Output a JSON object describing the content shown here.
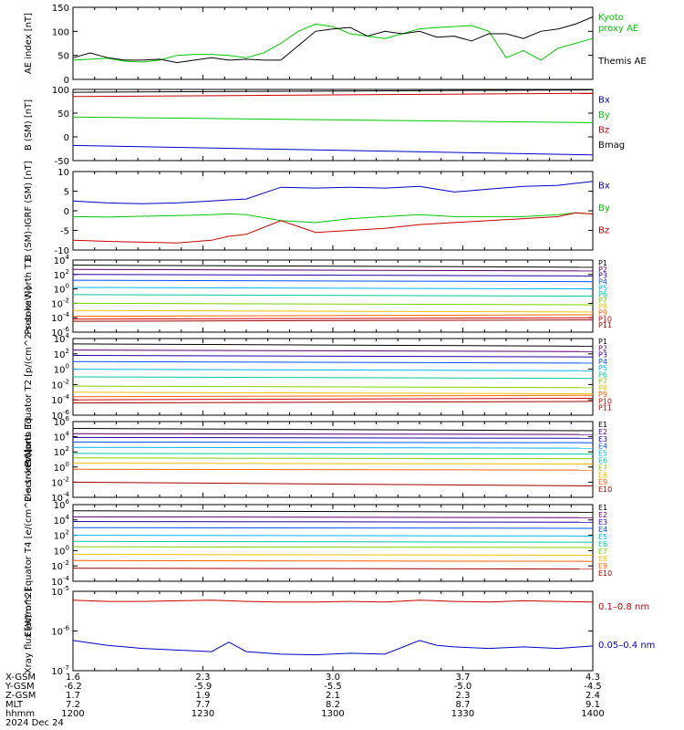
{
  "time_axis": {
    "date": "2024 Dec 24",
    "row_labels": [
      "X-GSM",
      "Y-GSM",
      "Z-GSM",
      "MLT",
      "hhmm"
    ],
    "columns": [
      {
        "values": [
          "1.6",
          "-6.2",
          "1.7",
          "7.2",
          "1200"
        ]
      },
      {
        "values": [
          "2.3",
          "-5.9",
          "1.9",
          "7.7",
          "1230"
        ]
      },
      {
        "values": [
          "3.0",
          "-5.5",
          "2.1",
          "8.2",
          "1300"
        ]
      },
      {
        "values": [
          "3.7",
          "-5.0",
          "2.3",
          "8.7",
          "1330"
        ]
      },
      {
        "values": [
          "4.3",
          "-4.5",
          "2.4",
          "9.1",
          "1400"
        ]
      }
    ]
  },
  "colors": {
    "black": "#000000",
    "blue": "#0000c8",
    "green": "#00c800",
    "red": "#c80000",
    "xray_red": "#c80000",
    "xray_blue": "#0000c8"
  },
  "chart_data": [
    {
      "type": "line",
      "id": "ae",
      "ylabel": "AE index [nT]",
      "ylim": [
        0,
        150
      ],
      "yticks": [
        "0",
        "50",
        "100",
        "150"
      ],
      "x": [
        1200,
        1204,
        1208,
        1212,
        1216,
        1220,
        1224,
        1228,
        1232,
        1236,
        1240,
        1244,
        1248,
        1252,
        1256,
        1300,
        1304,
        1308,
        1312,
        1316,
        1320,
        1324,
        1328,
        1332,
        1336,
        1340,
        1344,
        1348,
        1352,
        1356,
        1400
      ],
      "series": [
        {
          "name": "Kyoto proxy AE",
          "color": "green",
          "values": [
            40,
            42,
            44,
            38,
            36,
            40,
            50,
            52,
            52,
            50,
            45,
            55,
            75,
            100,
            115,
            110,
            95,
            90,
            85,
            95,
            105,
            108,
            110,
            112,
            100,
            45,
            60,
            40,
            65,
            75,
            85
          ]
        },
        {
          "name": "Themis AE",
          "color": "black",
          "values": [
            45,
            55,
            45,
            40,
            40,
            42,
            35,
            40,
            45,
            40,
            42,
            40,
            40,
            70,
            100,
            105,
            108,
            90,
            100,
            95,
            100,
            88,
            90,
            80,
            95,
            95,
            85,
            100,
            105,
            115,
            130
          ]
        }
      ]
    },
    {
      "type": "line",
      "id": "bsm",
      "ylabel": "B (SM) [nT]",
      "ylim": [
        -50,
        100
      ],
      "yticks": [
        "-50",
        "0",
        "50",
        "100"
      ],
      "x": [
        1200,
        1400
      ],
      "series": [
        {
          "name": "Bx",
          "color": "blue",
          "values": [
            -18,
            -38
          ]
        },
        {
          "name": "By",
          "color": "green",
          "values": [
            42,
            30
          ]
        },
        {
          "name": "Bz",
          "color": "red",
          "values": [
            85,
            92
          ]
        },
        {
          "name": "Bmag",
          "color": "black",
          "values": [
            94,
            99
          ]
        }
      ]
    },
    {
      "type": "line",
      "id": "bigrf",
      "ylabel": "B (SM)-IGRF (SM) [nT]",
      "ylim": [
        -10,
        10
      ],
      "yticks": [
        "-10",
        "-5",
        "0",
        "5",
        "10"
      ],
      "x": [
        1200,
        1208,
        1216,
        1224,
        1232,
        1236,
        1240,
        1248,
        1256,
        1304,
        1312,
        1320,
        1328,
        1336,
        1344,
        1352,
        1356,
        1400
      ],
      "series": [
        {
          "name": "Bx",
          "color": "blue",
          "values": [
            2.5,
            2.0,
            1.8,
            2.0,
            2.5,
            2.8,
            3.0,
            6.0,
            5.8,
            6.0,
            5.8,
            6.2,
            4.8,
            5.5,
            6.2,
            6.5,
            7.0,
            7.5
          ]
        },
        {
          "name": "By",
          "color": "green",
          "values": [
            -1.5,
            -1.6,
            -1.4,
            -1.2,
            -1.0,
            -0.8,
            -1.0,
            -2.5,
            -3.0,
            -2.0,
            -1.5,
            -1.0,
            -1.5,
            -1.5,
            -1.5,
            -1.0,
            -0.5,
            -0.8
          ]
        },
        {
          "name": "Bz",
          "color": "red",
          "values": [
            -7.5,
            -7.8,
            -8.0,
            -8.2,
            -7.5,
            -6.5,
            -6.0,
            -2.5,
            -5.5,
            -5.0,
            -4.5,
            -3.5,
            -3.0,
            -2.5,
            -2.0,
            -1.5,
            -0.5,
            -0.8
          ]
        }
      ]
    },
    {
      "type": "line",
      "id": "p_n",
      "ylabel": "Protons North T1",
      "scale": "log",
      "ylim": [
        -6,
        4
      ],
      "yticks": [
        "10^-6",
        "10^-4",
        "10^-2",
        "10^0",
        "10^2",
        "10^4"
      ],
      "x": [
        1200,
        1400
      ],
      "series": [
        {
          "name": "P1",
          "color": "#000000",
          "values": [
            3.3,
            3.0
          ]
        },
        {
          "name": "P2",
          "color": "#5a0070",
          "values": [
            2.7,
            2.5
          ]
        },
        {
          "name": "P3",
          "color": "#2200aa",
          "values": [
            2.0,
            1.8
          ]
        },
        {
          "name": "P4",
          "color": "#0050ff",
          "values": [
            1.2,
            1.0
          ]
        },
        {
          "name": "P5",
          "color": "#00b4ff",
          "values": [
            0.2,
            0.0
          ]
        },
        {
          "name": "P6",
          "color": "#00c8a0",
          "values": [
            -0.8,
            -1.0
          ]
        },
        {
          "name": "P7",
          "color": "#80d000",
          "values": [
            -2.0,
            -2.2
          ]
        },
        {
          "name": "P8",
          "color": "#f0c000",
          "values": [
            -3.0,
            -3.2
          ]
        },
        {
          "name": "P9",
          "color": "#ff6000",
          "values": [
            -3.8,
            -3.6
          ]
        },
        {
          "name": "P10",
          "color": "#d00000",
          "values": [
            -4.2,
            -4.0
          ]
        },
        {
          "name": "P11",
          "color": "#a00000",
          "values": [
            -4.5,
            -4.3
          ]
        }
      ]
    },
    {
      "type": "line",
      "id": "p_e",
      "ylabel": "Protons Equator T2 [p/(cm^2-s-sr-keV)]",
      "scale": "log",
      "ylim": [
        -6,
        4
      ],
      "yticks": [
        "10^-6",
        "10^-4",
        "10^-2",
        "10^0",
        "10^2",
        "10^4"
      ],
      "x": [
        1200,
        1400
      ],
      "series": [
        {
          "name": "P1",
          "color": "#000000",
          "values": [
            3.3,
            3.0
          ]
        },
        {
          "name": "P2",
          "color": "#5a0070",
          "values": [
            2.5,
            2.3
          ]
        },
        {
          "name": "P3",
          "color": "#2200aa",
          "values": [
            1.8,
            1.6
          ]
        },
        {
          "name": "P4",
          "color": "#0050ff",
          "values": [
            1.0,
            0.8
          ]
        },
        {
          "name": "P5",
          "color": "#00b4ff",
          "values": [
            0.0,
            -0.2
          ]
        },
        {
          "name": "P6",
          "color": "#00c8a0",
          "values": [
            -1.0,
            -1.2
          ]
        },
        {
          "name": "P7",
          "color": "#80d000",
          "values": [
            -2.2,
            -2.4
          ]
        },
        {
          "name": "P8",
          "color": "#f0c000",
          "values": [
            -3.0,
            -3.2
          ]
        },
        {
          "name": "P9",
          "color": "#ff6000",
          "values": [
            -3.6,
            -3.4
          ]
        },
        {
          "name": "P10",
          "color": "#d00000",
          "values": [
            -4.0,
            -3.8
          ]
        },
        {
          "name": "P11",
          "color": "#a00000",
          "values": [
            -4.4,
            -4.2
          ]
        }
      ]
    },
    {
      "type": "line",
      "id": "e_n",
      "ylabel": "Electrons North T3",
      "scale": "log",
      "ylim": [
        -4,
        6
      ],
      "yticks": [
        "10^-4",
        "10^-2",
        "10^0",
        "10^2",
        "10^4",
        "10^6"
      ],
      "x": [
        1200,
        1400
      ],
      "series": [
        {
          "name": "E1",
          "color": "#000000",
          "values": [
            5.1,
            4.8
          ]
        },
        {
          "name": "E2",
          "color": "#5a0070",
          "values": [
            4.4,
            4.3
          ]
        },
        {
          "name": "E3",
          "color": "#2200aa",
          "values": [
            3.9,
            3.8
          ]
        },
        {
          "name": "E4",
          "color": "#0050ff",
          "values": [
            3.3,
            3.2
          ]
        },
        {
          "name": "E5",
          "color": "#00b4ff",
          "values": [
            2.6,
            2.5
          ]
        },
        {
          "name": "E6",
          "color": "#00c8a0",
          "values": [
            1.8,
            1.7
          ]
        },
        {
          "name": "E7",
          "color": "#80d000",
          "values": [
            1.2,
            1.1
          ]
        },
        {
          "name": "E8",
          "color": "#f0c000",
          "values": [
            0.5,
            0.4
          ]
        },
        {
          "name": "E9",
          "color": "#ff6000",
          "values": [
            -0.3,
            -0.4
          ]
        },
        {
          "name": "E10",
          "color": "#a00000",
          "values": [
            -2.0,
            -2.5
          ]
        }
      ]
    },
    {
      "type": "line",
      "id": "e_e",
      "ylabel": "Electrons Equator T4 [e/(cm^2-s-sr-keV)]",
      "scale": "log",
      "ylim": [
        -4,
        6
      ],
      "yticks": [
        "10^-4",
        "10^-2",
        "10^0",
        "10^2",
        "10^4",
        "10^6"
      ],
      "x": [
        1200,
        1400
      ],
      "series": [
        {
          "name": "E1",
          "color": "#000000",
          "values": [
            5.2,
            5.0
          ]
        },
        {
          "name": "E2",
          "color": "#5a0070",
          "values": [
            4.4,
            4.3
          ]
        },
        {
          "name": "E3",
          "color": "#2200aa",
          "values": [
            3.8,
            3.7
          ]
        },
        {
          "name": "E4",
          "color": "#0050ff",
          "values": [
            3.0,
            2.9
          ]
        },
        {
          "name": "E5",
          "color": "#00b4ff",
          "values": [
            2.0,
            1.9
          ]
        },
        {
          "name": "E6",
          "color": "#00c8a0",
          "values": [
            1.2,
            1.1
          ]
        },
        {
          "name": "E7",
          "color": "#80d000",
          "values": [
            0.5,
            0.4
          ]
        },
        {
          "name": "E8",
          "color": "#f0c000",
          "values": [
            -0.5,
            -0.6
          ]
        },
        {
          "name": "E9",
          "color": "#ff6000",
          "values": [
            -1.3,
            -1.4
          ]
        },
        {
          "name": "E10",
          "color": "#a00000",
          "values": [
            -2.3,
            -2.4
          ]
        }
      ]
    },
    {
      "type": "line",
      "id": "xray",
      "ylabel": "Xray flux [W/m^2]",
      "scale": "log",
      "ylim": [
        -7.5,
        -5
      ],
      "yticks": [
        "10^-7",
        "10^-6",
        "10^-5"
      ],
      "x": [
        1200,
        1208,
        1216,
        1224,
        1232,
        1236,
        1240,
        1248,
        1256,
        1304,
        1312,
        1320,
        1324,
        1328,
        1336,
        1344,
        1352,
        1400
      ],
      "series": [
        {
          "name": "0.1–0.8 nm",
          "color": "xray_red",
          "values": [
            -5.28,
            -5.32,
            -5.32,
            -5.3,
            -5.28,
            -5.3,
            -5.32,
            -5.34,
            -5.34,
            -5.32,
            -5.34,
            -5.28,
            -5.3,
            -5.32,
            -5.34,
            -5.3,
            -5.32,
            -5.34
          ]
        },
        {
          "name": "0.05–0.4 nm",
          "color": "xray_blue",
          "values": [
            -6.55,
            -6.7,
            -6.8,
            -6.85,
            -6.9,
            -6.6,
            -6.9,
            -6.98,
            -7.0,
            -6.95,
            -6.98,
            -6.55,
            -6.7,
            -6.75,
            -6.8,
            -6.75,
            -6.8,
            -6.72
          ]
        }
      ]
    }
  ]
}
